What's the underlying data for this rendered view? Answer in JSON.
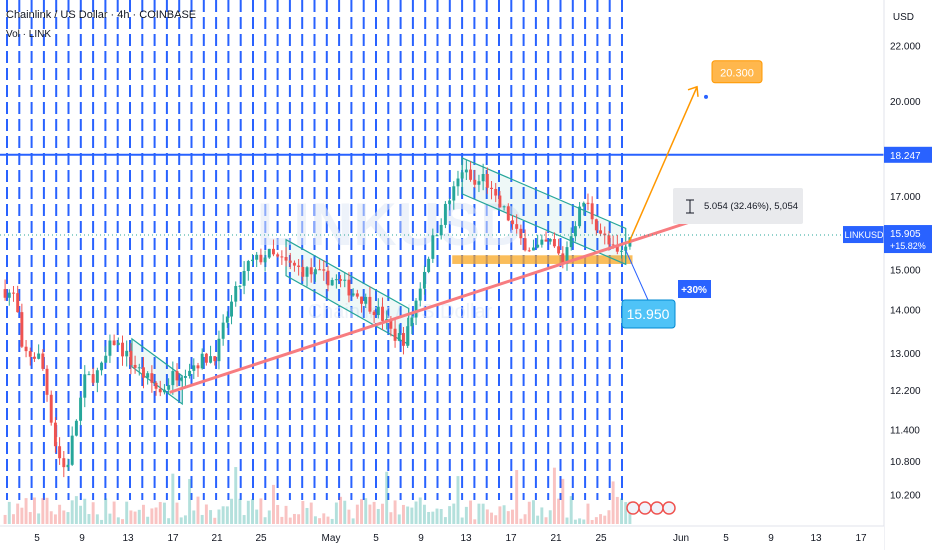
{
  "header": {
    "title": "Chainlink / US Dollar · 4h · COINBASE",
    "volume_label": "Vol · LINK",
    "currency": "USD"
  },
  "colors": {
    "up": "#26a69a",
    "down": "#ef5350",
    "grid": "#2962ff",
    "resistance": "#2962ff",
    "trendline": "#f77c80",
    "support_zone": "#f9a825",
    "channel": "#26a69a",
    "target_arrow": "#ff9800",
    "stop_arrow": "#2962ff",
    "watermark": "#dfe8f6"
  },
  "watermark": {
    "symbol": "LINKUSD",
    "name": "Chainlink / US Dollar"
  },
  "chart_data": {
    "type": "candlestick",
    "y_axis": {
      "ylim": [
        9.9,
        23.3
      ],
      "scale": "log",
      "ticks": [
        "22.000",
        "20.000",
        "17.000",
        "15.000",
        "14.000",
        "13.000",
        "12.200",
        "11.400",
        "10.800",
        "10.200"
      ]
    },
    "x_axis": {
      "ticks": [
        "5",
        "9",
        "13",
        "17",
        "21",
        "25",
        "May",
        "5",
        "9",
        "13",
        "17",
        "21",
        "25",
        "Jun",
        "5",
        "9",
        "13",
        "17"
      ]
    },
    "price_path": [
      [
        0,
        14.5
      ],
      [
        0.02,
        14.3
      ],
      [
        0.03,
        13.0
      ],
      [
        0.06,
        12.9
      ],
      [
        0.085,
        11.0
      ],
      [
        0.1,
        10.6
      ],
      [
        0.13,
        12.4
      ],
      [
        0.155,
        12.6
      ],
      [
        0.175,
        13.3
      ],
      [
        0.21,
        12.7
      ],
      [
        0.25,
        12.15
      ],
      [
        0.27,
        12.5
      ],
      [
        0.31,
        12.8
      ],
      [
        0.34,
        13.0
      ],
      [
        0.355,
        13.8
      ],
      [
        0.37,
        14.4
      ],
      [
        0.39,
        15.1
      ],
      [
        0.42,
        15.4
      ],
      [
        0.455,
        15.1
      ],
      [
        0.49,
        14.9
      ],
      [
        0.53,
        14.7
      ],
      [
        0.57,
        14.3
      ],
      [
        0.6,
        13.9
      ],
      [
        0.62,
        13.4
      ],
      [
        0.64,
        13.3
      ],
      [
        0.66,
        14.4
      ],
      [
        0.68,
        15.6
      ],
      [
        0.7,
        16.5
      ],
      [
        0.72,
        17.3
      ],
      [
        0.73,
        17.8
      ],
      [
        0.75,
        17.3
      ],
      [
        0.765,
        17.6
      ],
      [
        0.78,
        16.9
      ],
      [
        0.8,
        16.5
      ],
      [
        0.82,
        15.8
      ],
      [
        0.845,
        15.5
      ],
      [
        0.87,
        15.7
      ],
      [
        0.89,
        15.2
      ],
      [
        0.905,
        16.1
      ],
      [
        0.925,
        16.9
      ],
      [
        0.94,
        16.3
      ],
      [
        0.96,
        15.7
      ],
      [
        0.98,
        15.3
      ],
      [
        1.0,
        15.9
      ]
    ],
    "resistance_level": 18.247,
    "support_zone": [
      15.15,
      15.35
    ],
    "ascending_trendline": {
      "from": 12.15,
      "to": 16.45
    },
    "annotations": {
      "target": "20.300",
      "current_price": "15.950",
      "gain_label": "+30%",
      "measure": "5.054 (32.46%), 5,054"
    },
    "price_label": {
      "symbol": "LINKUSD",
      "price": "15.905",
      "change": "+15.82%"
    },
    "resistance_label": "18.247"
  }
}
